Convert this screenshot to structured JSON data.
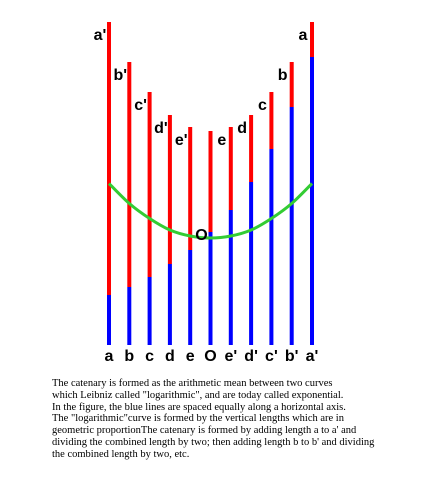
{
  "diagram": {
    "colors": {
      "upper": "#ff0000",
      "lower": "#0000ff",
      "curve": "#33cc33"
    },
    "bars": [
      {
        "bottom_label": "a",
        "top_label": "a'",
        "total": 323,
        "blue": 50
      },
      {
        "bottom_label": "b",
        "top_label": "b'",
        "total": 283,
        "blue": 58
      },
      {
        "bottom_label": "c",
        "top_label": "c'",
        "total": 253,
        "blue": 68
      },
      {
        "bottom_label": "d",
        "top_label": "d'",
        "total": 230,
        "blue": 81
      },
      {
        "bottom_label": "e",
        "top_label": "e'",
        "total": 218,
        "blue": 95
      },
      {
        "bottom_label": "O",
        "top_label": "",
        "total": 214,
        "blue": 113
      },
      {
        "bottom_label": "e'",
        "top_label": "e",
        "total": 218,
        "blue": 135
      },
      {
        "bottom_label": "d'",
        "top_label": "d",
        "total": 230,
        "blue": 163
      },
      {
        "bottom_label": "c'",
        "top_label": "c",
        "total": 253,
        "blue": 196
      },
      {
        "bottom_label": "b'",
        "top_label": "b",
        "total": 283,
        "blue": 238
      },
      {
        "bottom_label": "a'",
        "top_label": "a",
        "total": 323,
        "blue": 288
      }
    ],
    "center_label": "O"
  },
  "caption": {
    "lines": [
      "The catenary is formed as the arithmetic mean between two curves",
      "which Leibniz called \"logarithmic\", and are today called exponential.",
      "In the figure, the blue lines are spaced equally along a horizontal axis.",
      "The \"logarithmic\"curve is formed by the vertical lengths which are in",
      "geometric  proportionThe catenary is formed by adding length a to a' and",
      "dividing  the combined length by two; then adding length b to b' and dividing",
      "the combined length by two, etc."
    ]
  }
}
